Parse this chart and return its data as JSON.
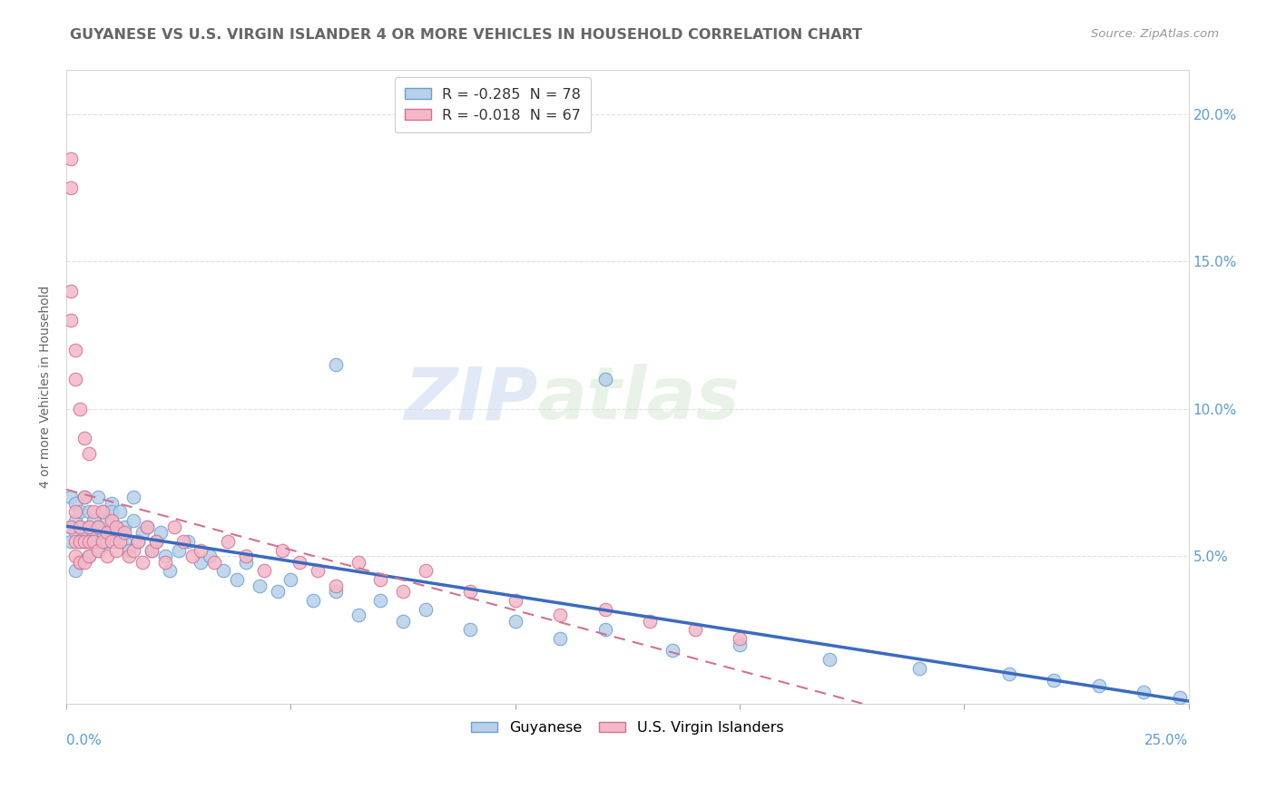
{
  "title": "GUYANESE VS U.S. VIRGIN ISLANDER 4 OR MORE VEHICLES IN HOUSEHOLD CORRELATION CHART",
  "source": "Source: ZipAtlas.com",
  "ylabel": "4 or more Vehicles in Household",
  "series1_name": "Guyanese",
  "series2_name": "U.S. Virgin Islanders",
  "series1_color": "#b8d0e8",
  "series2_color": "#f4b8c8",
  "series1_edge": "#6a9fd8",
  "series2_edge": "#d47090",
  "series1_line_color": "#3a6bbf",
  "series2_line_color": "#d47090",
  "series1_R": -0.285,
  "series1_N": 78,
  "series2_R": -0.018,
  "series2_N": 67,
  "watermark_zip": "ZIP",
  "watermark_atlas": "atlas",
  "background_color": "#ffffff",
  "grid_color": "#dddddd",
  "title_color": "#666666",
  "axis_label_color": "#5b9bd5",
  "right_ytick_color": "#5b9bd5",
  "xlim": [
    0.0,
    0.25
  ],
  "ylim": [
    0.0,
    0.215
  ],
  "guyanese_x": [
    0.001,
    0.001,
    0.001,
    0.002,
    0.002,
    0.002,
    0.002,
    0.003,
    0.003,
    0.003,
    0.003,
    0.004,
    0.004,
    0.004,
    0.005,
    0.005,
    0.005,
    0.006,
    0.006,
    0.006,
    0.007,
    0.007,
    0.007,
    0.008,
    0.008,
    0.009,
    0.009,
    0.01,
    0.01,
    0.01,
    0.011,
    0.011,
    0.012,
    0.012,
    0.013,
    0.013,
    0.014,
    0.015,
    0.015,
    0.016,
    0.017,
    0.018,
    0.019,
    0.02,
    0.021,
    0.022,
    0.023,
    0.025,
    0.027,
    0.03,
    0.032,
    0.035,
    0.038,
    0.04,
    0.043,
    0.047,
    0.05,
    0.055,
    0.06,
    0.065,
    0.07,
    0.075,
    0.08,
    0.09,
    0.1,
    0.11,
    0.12,
    0.135,
    0.15,
    0.17,
    0.19,
    0.21,
    0.22,
    0.23,
    0.24,
    0.248,
    0.12,
    0.06
  ],
  "guyanese_y": [
    0.06,
    0.055,
    0.07,
    0.058,
    0.062,
    0.068,
    0.045,
    0.06,
    0.055,
    0.048,
    0.065,
    0.07,
    0.055,
    0.058,
    0.06,
    0.065,
    0.05,
    0.058,
    0.062,
    0.055,
    0.07,
    0.06,
    0.052,
    0.065,
    0.058,
    0.062,
    0.055,
    0.068,
    0.058,
    0.065,
    0.06,
    0.055,
    0.065,
    0.058,
    0.06,
    0.055,
    0.052,
    0.07,
    0.062,
    0.055,
    0.058,
    0.06,
    0.052,
    0.055,
    0.058,
    0.05,
    0.045,
    0.052,
    0.055,
    0.048,
    0.05,
    0.045,
    0.042,
    0.048,
    0.04,
    0.038,
    0.042,
    0.035,
    0.038,
    0.03,
    0.035,
    0.028,
    0.032,
    0.025,
    0.028,
    0.022,
    0.025,
    0.018,
    0.02,
    0.015,
    0.012,
    0.01,
    0.008,
    0.006,
    0.004,
    0.002,
    0.11,
    0.115
  ],
  "virgin_x": [
    0.001,
    0.001,
    0.001,
    0.002,
    0.002,
    0.002,
    0.003,
    0.003,
    0.003,
    0.004,
    0.004,
    0.004,
    0.005,
    0.005,
    0.005,
    0.006,
    0.006,
    0.007,
    0.007,
    0.008,
    0.008,
    0.009,
    0.009,
    0.01,
    0.01,
    0.011,
    0.011,
    0.012,
    0.013,
    0.014,
    0.015,
    0.016,
    0.017,
    0.018,
    0.019,
    0.02,
    0.022,
    0.024,
    0.026,
    0.028,
    0.03,
    0.033,
    0.036,
    0.04,
    0.044,
    0.048,
    0.052,
    0.056,
    0.06,
    0.065,
    0.07,
    0.075,
    0.08,
    0.09,
    0.1,
    0.11,
    0.12,
    0.13,
    0.14,
    0.15,
    0.001,
    0.001,
    0.002,
    0.002,
    0.003,
    0.004,
    0.005
  ],
  "virgin_y": [
    0.175,
    0.185,
    0.06,
    0.055,
    0.065,
    0.05,
    0.06,
    0.055,
    0.048,
    0.07,
    0.055,
    0.048,
    0.06,
    0.055,
    0.05,
    0.065,
    0.055,
    0.06,
    0.052,
    0.065,
    0.055,
    0.058,
    0.05,
    0.062,
    0.055,
    0.06,
    0.052,
    0.055,
    0.058,
    0.05,
    0.052,
    0.055,
    0.048,
    0.06,
    0.052,
    0.055,
    0.048,
    0.06,
    0.055,
    0.05,
    0.052,
    0.048,
    0.055,
    0.05,
    0.045,
    0.052,
    0.048,
    0.045,
    0.04,
    0.048,
    0.042,
    0.038,
    0.045,
    0.038,
    0.035,
    0.03,
    0.032,
    0.028,
    0.025,
    0.022,
    0.14,
    0.13,
    0.12,
    0.11,
    0.1,
    0.09,
    0.085
  ]
}
